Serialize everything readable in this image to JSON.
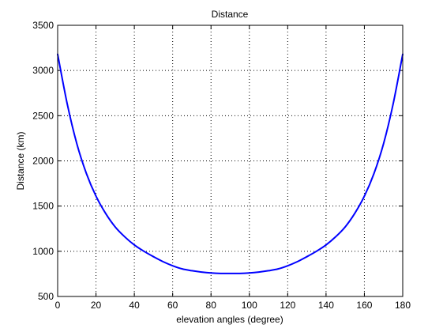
{
  "chart_data": {
    "type": "line",
    "title": "Distance",
    "xlabel": "elevation angles (degree)",
    "ylabel": "Distance (km)",
    "xlim": [
      0,
      180
    ],
    "ylim": [
      500,
      3500
    ],
    "xticks": [
      0,
      20,
      40,
      60,
      80,
      100,
      120,
      140,
      160,
      180
    ],
    "yticks": [
      500,
      1000,
      1500,
      2000,
      2500,
      3000,
      3500
    ],
    "grid": true,
    "line_color": "#0000ff",
    "series": [
      {
        "x": [
          0,
          5,
          10,
          15,
          20,
          25,
          30,
          35,
          40,
          45,
          50,
          55,
          60,
          65,
          70,
          75,
          80,
          85,
          90,
          95,
          100,
          105,
          110,
          115,
          120,
          125,
          130,
          135,
          140,
          145,
          150,
          155,
          160,
          165,
          170,
          175,
          180
        ],
        "y": [
          3180,
          2630,
          2190,
          1860,
          1610,
          1420,
          1270,
          1160,
          1070,
          1000,
          940,
          885,
          840,
          805,
          785,
          770,
          760,
          755,
          755,
          755,
          760,
          770,
          785,
          805,
          840,
          885,
          940,
          1000,
          1070,
          1160,
          1270,
          1420,
          1610,
          1860,
          2190,
          2630,
          3180
        ]
      }
    ]
  }
}
